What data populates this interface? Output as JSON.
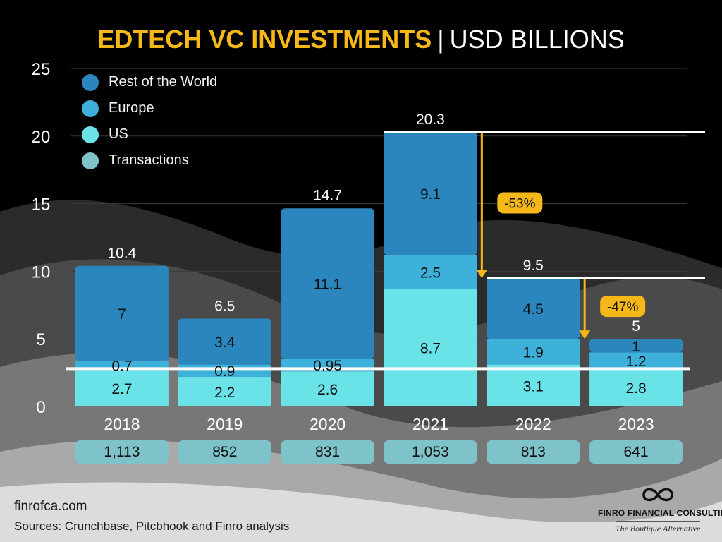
{
  "title": {
    "main": "EDTECH  VC INVESTMENTS",
    "separator": "|",
    "unit": "USD BILLIONS"
  },
  "colors": {
    "rest_of_world": "#2a86bd",
    "europe": "#3db1da",
    "us": "#69e2e8",
    "transactions": "#7ec3c9",
    "accent": "#f5b818",
    "reference_line": "#ffffff"
  },
  "legend": [
    {
      "label": "Rest of the World",
      "color": "#2a86bd"
    },
    {
      "label": "Europe",
      "color": "#3db1da"
    },
    {
      "label": "US",
      "color": "#69e2e8"
    },
    {
      "label": "Transactions",
      "color": "#7ec3c9"
    }
  ],
  "chart_data": {
    "type": "bar",
    "stacked": true,
    "categories": [
      "2018",
      "2019",
      "2020",
      "2021",
      "2022",
      "2023"
    ],
    "series": [
      {
        "name": "US",
        "values": [
          2.7,
          2.2,
          2.6,
          8.7,
          3.1,
          2.8
        ],
        "labels": [
          "2.7",
          "2.2",
          "2.6",
          "8.7",
          "3.1",
          "2.8"
        ]
      },
      {
        "name": "Europe",
        "values": [
          0.7,
          0.9,
          0.95,
          2.5,
          1.9,
          1.2
        ],
        "labels": [
          "0.7",
          "0.9",
          "0.95",
          "2.5",
          "1.9",
          "1.2"
        ]
      },
      {
        "name": "Rest of the World",
        "values": [
          7,
          3.4,
          11.1,
          9.1,
          4.5,
          1
        ],
        "labels": [
          "7",
          "3.4",
          "11.1",
          "9.1",
          "4.5",
          "1"
        ]
      }
    ],
    "totals": [
      10.4,
      6.5,
      14.7,
      20.3,
      9.5,
      5
    ],
    "total_labels": [
      "10.4",
      "6.5",
      "14.7",
      "20.3",
      "9.5",
      "5"
    ],
    "transactions": [
      "1,113",
      "852",
      "831",
      "1,053",
      "813",
      "641"
    ],
    "ylim": [
      0,
      25
    ],
    "yticks": [
      0,
      5,
      10,
      15,
      20,
      25
    ],
    "ytick_labels": [
      "0",
      "5",
      "10",
      "15",
      "20",
      "25"
    ],
    "grid": true,
    "legend_position": "top-left",
    "reference_lines": [
      20.3,
      9.5,
      2.8
    ],
    "annotations": [
      {
        "label": "-53%",
        "from_category": "2021",
        "to_category": "2022"
      },
      {
        "label": "-47%",
        "from_category": "2022",
        "to_category": "2023"
      }
    ]
  },
  "footer": {
    "url": "finrofca.com",
    "sources": "Sources: Crunchbase, Pitcbhook and Finro analysis"
  },
  "brand": {
    "name": "FINRO FINANCIAL CONSULTING",
    "tagline": "The Boutique Alternative"
  }
}
